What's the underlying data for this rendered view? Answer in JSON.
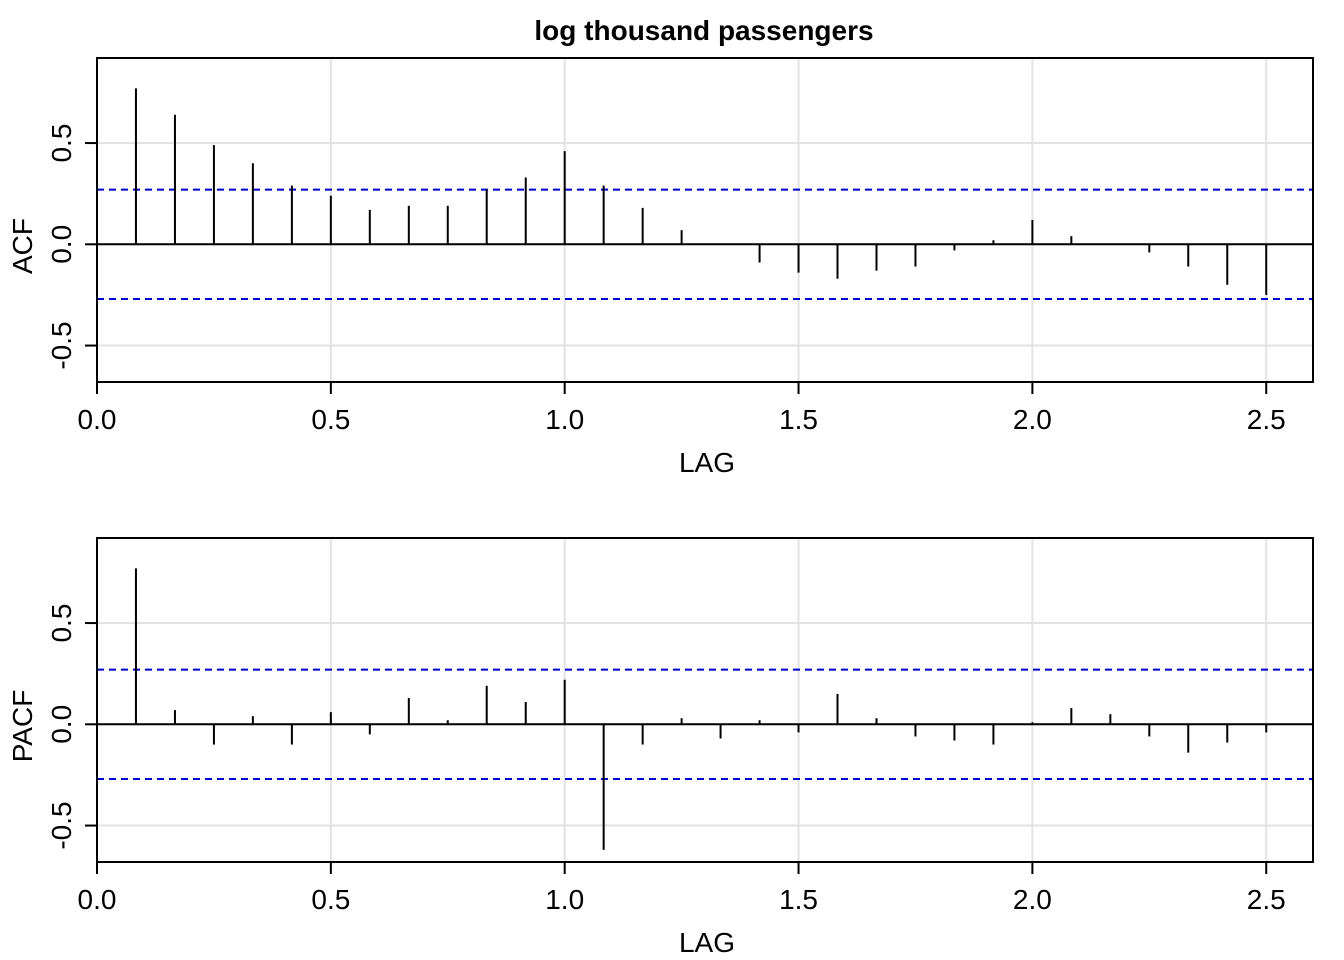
{
  "chart_data": [
    {
      "type": "bar",
      "title": "log thousand passengers",
      "xlabel": "LAG",
      "ylabel": "ACF",
      "xlim": [
        0,
        2.6
      ],
      "ylim": [
        -0.68,
        0.92
      ],
      "x_ticks": [
        "0.0",
        "0.5",
        "1.0",
        "1.5",
        "2.0",
        "2.5"
      ],
      "x_tick_values": [
        0,
        0.5,
        1,
        1.5,
        2,
        2.5
      ],
      "y_ticks": [
        "-0.5",
        "0.0",
        "0.5"
      ],
      "y_tick_values": [
        -0.5,
        0,
        0.5
      ],
      "grid": true,
      "ci": [
        0.27,
        -0.27
      ],
      "colors": {
        "ci": "#0000cc",
        "grid": "#e3e3e3",
        "spike": "#000000"
      },
      "x": [
        0.0833,
        0.1667,
        0.25,
        0.3333,
        0.4167,
        0.5,
        0.5833,
        0.6667,
        0.75,
        0.8333,
        0.9167,
        1.0,
        1.0833,
        1.1667,
        1.25,
        1.3333,
        1.4167,
        1.5,
        1.5833,
        1.6667,
        1.75,
        1.8333,
        1.9167,
        2.0,
        2.0833,
        2.1667,
        2.25,
        2.3333,
        2.4167,
        2.5
      ],
      "values": [
        0.77,
        0.64,
        0.49,
        0.4,
        0.29,
        0.24,
        0.17,
        0.19,
        0.19,
        0.27,
        0.33,
        0.46,
        0.29,
        0.18,
        0.07,
        0.0,
        -0.09,
        -0.14,
        -0.17,
        -0.13,
        -0.11,
        -0.03,
        0.02,
        0.12,
        0.04,
        0.0,
        -0.04,
        -0.11,
        -0.2,
        -0.25
      ]
    },
    {
      "type": "bar",
      "title": "",
      "xlabel": "LAG",
      "ylabel": "PACF",
      "xlim": [
        0,
        2.6
      ],
      "ylim": [
        -0.68,
        0.92
      ],
      "x_ticks": [
        "0.0",
        "0.5",
        "1.0",
        "1.5",
        "2.0",
        "2.5"
      ],
      "x_tick_values": [
        0,
        0.5,
        1,
        1.5,
        2,
        2.5
      ],
      "y_ticks": [
        "-0.5",
        "0.0",
        "0.5"
      ],
      "y_tick_values": [
        -0.5,
        0,
        0.5
      ],
      "grid": true,
      "ci": [
        0.27,
        -0.27
      ],
      "colors": {
        "ci": "#0000cc",
        "grid": "#e3e3e3",
        "spike": "#000000"
      },
      "x": [
        0.0833,
        0.1667,
        0.25,
        0.3333,
        0.4167,
        0.5,
        0.5833,
        0.6667,
        0.75,
        0.8333,
        0.9167,
        1.0,
        1.0833,
        1.1667,
        1.25,
        1.3333,
        1.4167,
        1.5,
        1.5833,
        1.6667,
        1.75,
        1.8333,
        1.9167,
        2.0,
        2.0833,
        2.1667,
        2.25,
        2.3333,
        2.4167,
        2.5
      ],
      "values": [
        0.77,
        0.07,
        -0.1,
        0.04,
        -0.1,
        0.06,
        -0.05,
        0.13,
        0.02,
        0.19,
        0.11,
        0.22,
        -0.62,
        -0.1,
        0.03,
        -0.07,
        0.02,
        -0.04,
        0.15,
        0.03,
        -0.06,
        -0.08,
        -0.1,
        0.01,
        0.08,
        0.05,
        -0.06,
        -0.14,
        -0.09,
        -0.04
      ]
    }
  ]
}
